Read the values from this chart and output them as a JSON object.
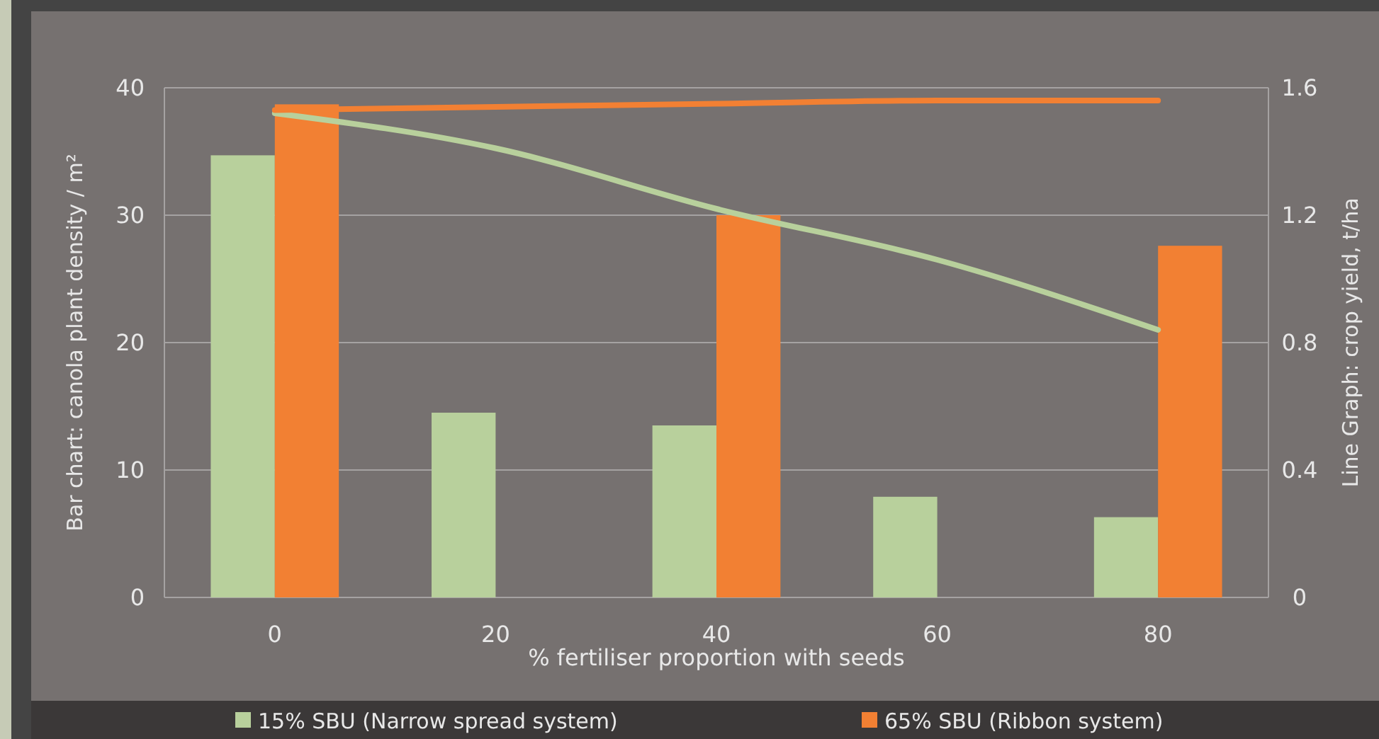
{
  "chart_data": {
    "type": "bar",
    "xlabel": "% fertiliser proportion with seeds",
    "ylabel": "Bar chart: canola plant density / m²",
    "y2label": "Line Graph: crop yield, t/ha",
    "categories": [
      "0",
      "20",
      "40",
      "60",
      "80"
    ],
    "series": [
      {
        "name": "15% SBU (Narrow spread system)",
        "color": "#b8d09c",
        "values": [
          34.7,
          14.5,
          13.5,
          7.9,
          6.3
        ]
      },
      {
        "name": "65% SBU (Ribbon system)",
        "color": "#f28033",
        "values": [
          38.7,
          null,
          30,
          null,
          27.6
        ]
      },
      {
        "type": "line",
        "axis": "y2",
        "color": "#b8d09c",
        "values": [
          1.52,
          1.41,
          1.22,
          1.06,
          0.84
        ]
      },
      {
        "type": "line",
        "axis": "y2",
        "color": "#f28033",
        "values": [
          1.53,
          1.54,
          1.55,
          1.56,
          1.56
        ]
      }
    ],
    "ylim": [
      0,
      40
    ],
    "yticks": [
      0,
      10,
      20,
      30,
      40
    ],
    "y2lim": [
      0,
      1.6
    ],
    "y2ticks": [
      0,
      0.4,
      0.8,
      1.2,
      1.6
    ],
    "grid": "y",
    "legend": "bottom",
    "marker": "none",
    "line_style": "solid"
  }
}
